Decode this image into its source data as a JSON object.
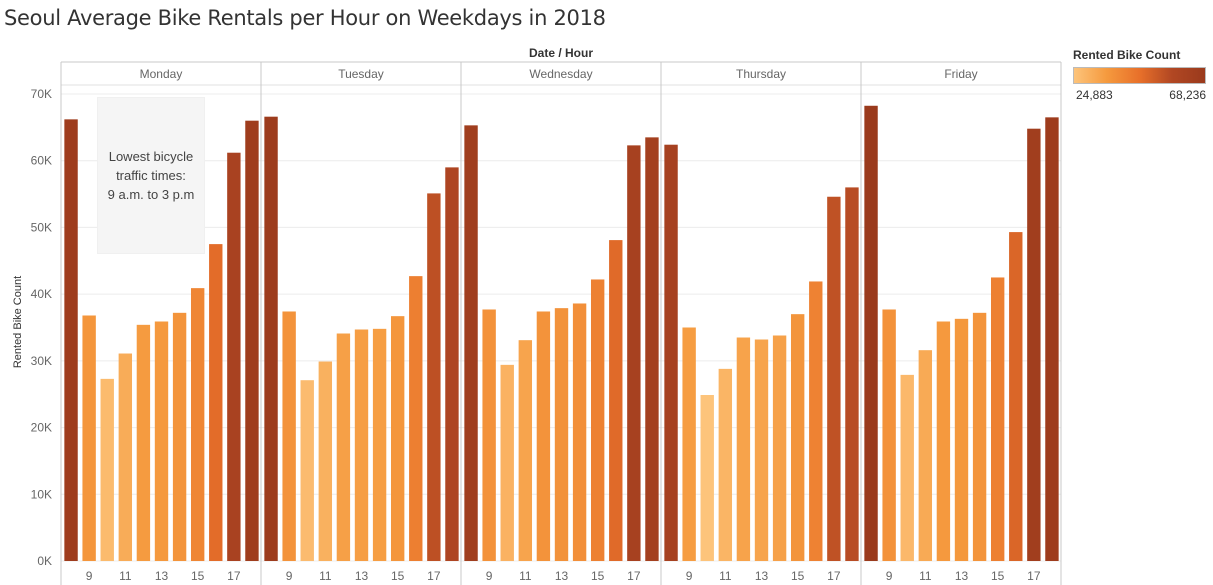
{
  "chart_data": {
    "type": "bar",
    "title": "Seoul Average Bike Rentals per Hour on Weekdays in 2018",
    "column_header": "Date / Hour",
    "ylabel": "Rented Bike Count",
    "ylim": [
      0,
      73000
    ],
    "yticks": [
      0,
      10000,
      20000,
      30000,
      40000,
      50000,
      60000,
      70000
    ],
    "ytick_labels": [
      "0K",
      "10K",
      "20K",
      "30K",
      "40K",
      "50K",
      "60K",
      "70K"
    ],
    "hours": [
      8,
      9,
      10,
      11,
      12,
      13,
      14,
      15,
      16,
      17,
      18
    ],
    "xtick_labels": [
      "9",
      "11",
      "13",
      "15",
      "17"
    ],
    "grid": true,
    "days": [
      {
        "name": "Monday",
        "values": [
          66200,
          36800,
          27300,
          31100,
          35400,
          35900,
          37200,
          40900,
          47500,
          61200,
          66000
        ]
      },
      {
        "name": "Tuesday",
        "values": [
          66600,
          37400,
          27100,
          29900,
          34100,
          34700,
          34800,
          36700,
          42700,
          55100,
          59000
        ]
      },
      {
        "name": "Wednesday",
        "values": [
          65300,
          37700,
          29400,
          33100,
          37400,
          37900,
          38600,
          42200,
          48100,
          62300,
          63500
        ]
      },
      {
        "name": "Thursday",
        "values": [
          62400,
          35000,
          24883,
          28800,
          33500,
          33200,
          33800,
          37000,
          41900,
          54600,
          56000
        ]
      },
      {
        "name": "Friday",
        "values": [
          68236,
          37700,
          27900,
          31600,
          35900,
          36300,
          37200,
          42500,
          49300,
          64800,
          66500
        ]
      }
    ],
    "annotation": [
      "Lowest bicycle",
      "traffic times:",
      "9 a.m. to 3 p.m"
    ],
    "legend": {
      "title": "Rented Bike Count",
      "min_label": "24,883",
      "max_label": "68,236",
      "min": 24883,
      "max": 68236,
      "colors": [
        "#fdc47b",
        "#f59a3e",
        "#e8702a",
        "#b14723",
        "#9a3a1c"
      ]
    }
  }
}
